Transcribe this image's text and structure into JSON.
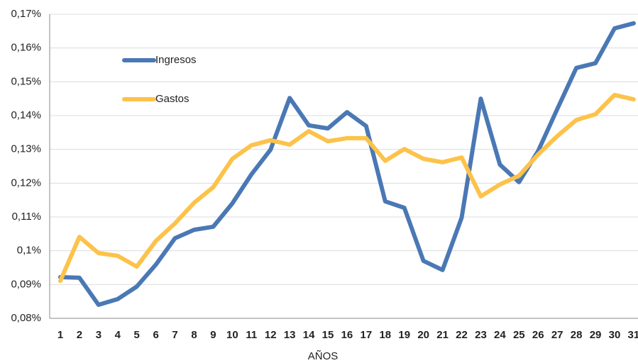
{
  "chart_data": {
    "type": "line",
    "x_label": "AÑOS",
    "categories": [
      "1",
      "2",
      "3",
      "4",
      "5",
      "6",
      "7",
      "8",
      "9",
      "10",
      "11",
      "12",
      "13",
      "14",
      "15",
      "16",
      "17",
      "18",
      "19",
      "20",
      "21",
      "22",
      "23",
      "24",
      "25",
      "26",
      "27",
      "28",
      "29",
      "30",
      "31"
    ],
    "series": [
      {
        "name": "Ingresos",
        "color": "#4a78b5",
        "values": [
          0.0922,
          0.092,
          0.084,
          0.0857,
          0.0894,
          0.0959,
          0.1037,
          0.1062,
          0.1071,
          0.114,
          0.1226,
          0.1299,
          0.1452,
          0.1371,
          0.1362,
          0.141,
          0.1369,
          0.1146,
          0.1127,
          0.097,
          0.0943,
          0.1098,
          0.145,
          0.1255,
          0.1203,
          0.1295,
          0.1419,
          0.1541,
          0.1555,
          0.1658,
          0.1673
        ]
      },
      {
        "name": "Gastos",
        "color": "#fcc24a",
        "values": [
          0.0911,
          0.1041,
          0.0993,
          0.0985,
          0.0953,
          0.1029,
          0.1081,
          0.1142,
          0.1188,
          0.1272,
          0.1312,
          0.1327,
          0.1314,
          0.1354,
          0.1324,
          0.1333,
          0.1333,
          0.1266,
          0.1301,
          0.1272,
          0.1262,
          0.1276,
          0.1161,
          0.1196,
          0.1222,
          0.1285,
          0.1339,
          0.1387,
          0.1404,
          0.1461,
          0.1448
        ]
      }
    ],
    "ylim": [
      0.08,
      0.17
    ],
    "yticks": [
      {
        "value": 0.08,
        "label": "0,08%"
      },
      {
        "value": 0.09,
        "label": "0,09%"
      },
      {
        "value": 0.1,
        "label": "0,1%"
      },
      {
        "value": 0.11,
        "label": "0,11%"
      },
      {
        "value": 0.12,
        "label": "0,12%"
      },
      {
        "value": 0.13,
        "label": "0,13%"
      },
      {
        "value": 0.14,
        "label": "0,14%"
      },
      {
        "value": 0.15,
        "label": "0,15%"
      },
      {
        "value": 0.16,
        "label": "0,16%"
      },
      {
        "value": 0.17,
        "label": "0,17%"
      }
    ],
    "grid": true,
    "legend": "upper left"
  }
}
